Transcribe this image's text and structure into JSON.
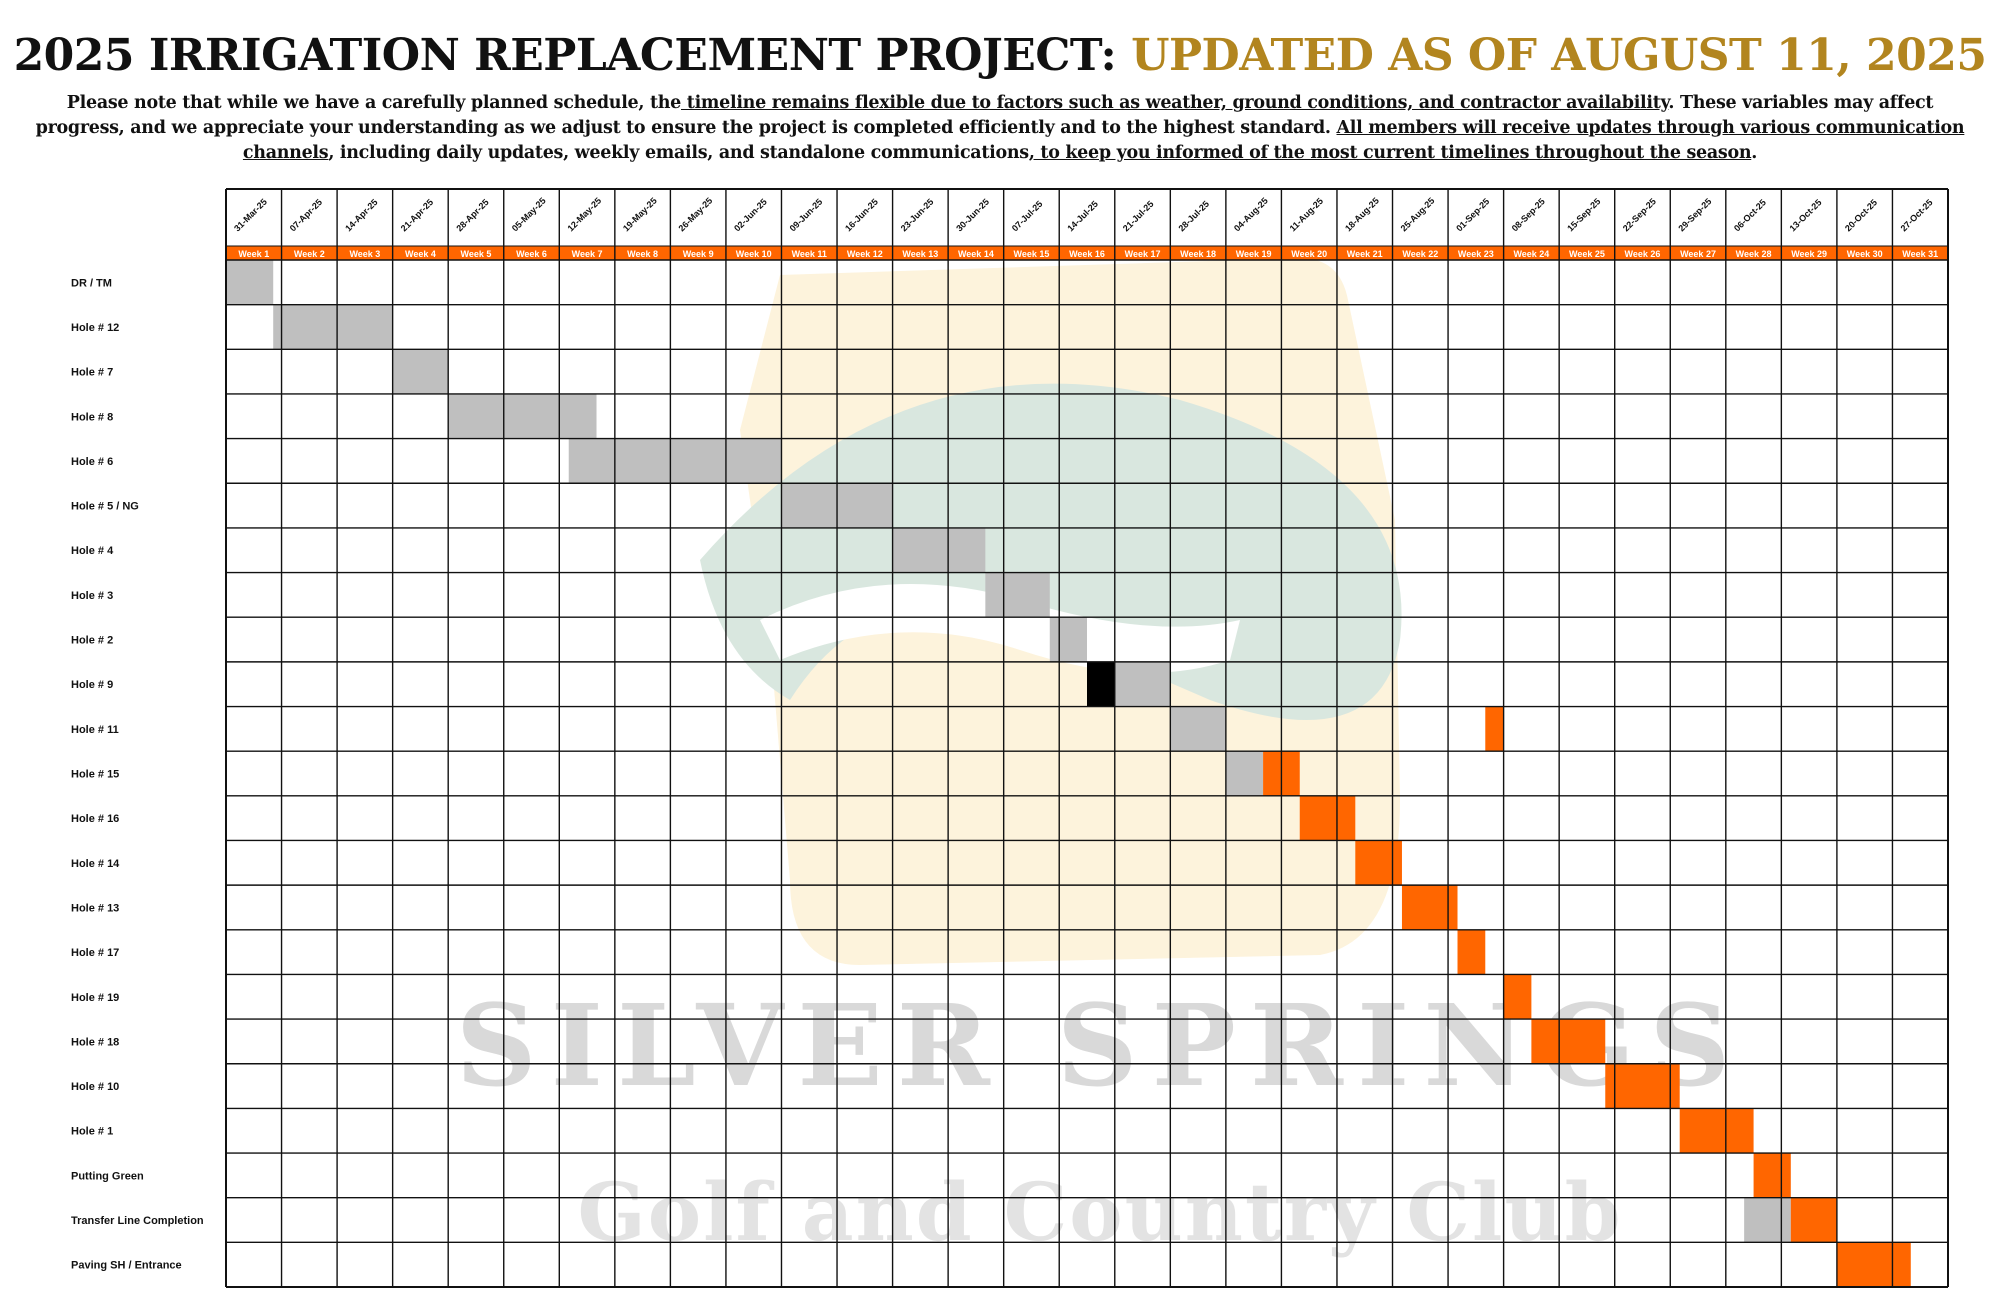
{
  "header": {
    "title_main": "2025 IRRIGATION REPLACEMENT PROJECT:",
    "title_update": "UPDATED AS OF AUGUST 11, 2025",
    "notice": [
      {
        "text": "Please note that while we have a carefully planned schedule, the",
        "u": false
      },
      {
        "text": " timeline remains flexible due to factors such as weather, ground conditions, and contractor availability",
        "u": true
      },
      {
        "text": ". These variables may affect progress, and we appreciate your understanding as we adjust to ensure the project is completed efficiently and to the highest standard.  ",
        "u": false
      },
      {
        "text": "All members will receive updates through various communication channels",
        "u": true
      },
      {
        "text": ", including daily updates, weekly emails, and standalone communications",
        "u": false
      },
      {
        "text": ", to keep you informed of the most current timelines throughout the season",
        "u": true
      },
      {
        "text": ".",
        "u": false
      }
    ]
  },
  "watermark": {
    "line1": "SILVER SPRINGS",
    "line2": "Golf and Country Club"
  },
  "colors": {
    "completed": "#bfbfbf",
    "planned": "#ff6600",
    "current": "#000000",
    "week_header": "#ff6600",
    "title_accent": "#b2851f"
  },
  "chart_data": {
    "type": "gantt",
    "dates": [
      "31-Mar-25",
      "07-Apr-25",
      "14-Apr-25",
      "21-Apr-25",
      "28-Apr-25",
      "05-May-25",
      "12-May-25",
      "19-May-25",
      "26-May-25",
      "02-Jun-25",
      "09-Jun-25",
      "16-Jun-25",
      "23-Jun-25",
      "30-Jun-25",
      "07-Jul-25",
      "14-Jul-25",
      "21-Jul-25",
      "28-Jul-25",
      "04-Aug-25",
      "11-Aug-25",
      "18-Aug-25",
      "25-Aug-25",
      "01-Sep-25",
      "08-Sep-25",
      "15-Sep-25",
      "22-Sep-25",
      "29-Sep-25",
      "06-Oct-25",
      "13-Oct-25",
      "20-Oct-25",
      "27-Oct-25"
    ],
    "weeks": [
      "Week 1",
      "Week 2",
      "Week 3",
      "Week 4",
      "Week 5",
      "Week 6",
      "Week 7",
      "Week 8",
      "Week 9",
      "Week 10",
      "Week 11",
      "Week 12",
      "Week 13",
      "Week 14",
      "Week 15",
      "Week 16",
      "Week 17",
      "Week 18",
      "Week 19",
      "Week 20",
      "Week 21",
      "Week 22",
      "Week 23",
      "Week 24",
      "Week 25",
      "Week 26",
      "Week 27",
      "Week 28",
      "Week 29",
      "Week 30",
      "Week 31"
    ],
    "tasks": [
      {
        "name": "DR / TM",
        "bars": [
          {
            "start": 1,
            "end": 1.85,
            "status": "completed"
          }
        ]
      },
      {
        "name": "Hole # 12",
        "bars": [
          {
            "start": 1.85,
            "end": 4,
            "status": "completed"
          }
        ]
      },
      {
        "name": "Hole # 7",
        "bars": [
          {
            "start": 4,
            "end": 5,
            "status": "completed"
          }
        ]
      },
      {
        "name": "Hole # 8",
        "bars": [
          {
            "start": 5,
            "end": 7.67,
            "status": "completed"
          }
        ]
      },
      {
        "name": "Hole # 6",
        "bars": [
          {
            "start": 7.17,
            "end": 11,
            "status": "completed"
          }
        ]
      },
      {
        "name": "Hole # 5 / NG",
        "bars": [
          {
            "start": 11,
            "end": 13,
            "status": "completed"
          }
        ]
      },
      {
        "name": "Hole # 4",
        "bars": [
          {
            "start": 13,
            "end": 14.67,
            "status": "completed"
          }
        ]
      },
      {
        "name": "Hole # 3",
        "bars": [
          {
            "start": 14.67,
            "end": 15.83,
            "status": "completed"
          }
        ]
      },
      {
        "name": "Hole # 2",
        "bars": [
          {
            "start": 15.83,
            "end": 16.5,
            "status": "completed"
          }
        ]
      },
      {
        "name": "Hole # 9",
        "bars": [
          {
            "start": 16.5,
            "end": 17,
            "status": "current"
          },
          {
            "start": 17,
            "end": 18,
            "status": "completed"
          }
        ]
      },
      {
        "name": "Hole # 11",
        "bars": [
          {
            "start": 18,
            "end": 19,
            "status": "completed"
          },
          {
            "start": 23.67,
            "end": 24,
            "status": "planned"
          }
        ]
      },
      {
        "name": "Hole # 15",
        "bars": [
          {
            "start": 19,
            "end": 19.67,
            "status": "completed"
          },
          {
            "start": 19.67,
            "end": 20.33,
            "status": "planned"
          }
        ]
      },
      {
        "name": "Hole # 16",
        "bars": [
          {
            "start": 20.33,
            "end": 21.33,
            "status": "planned"
          }
        ]
      },
      {
        "name": "Hole # 14",
        "bars": [
          {
            "start": 21.33,
            "end": 22.17,
            "status": "planned"
          }
        ]
      },
      {
        "name": "Hole # 13",
        "bars": [
          {
            "start": 22.17,
            "end": 23.17,
            "status": "planned"
          }
        ]
      },
      {
        "name": "Hole # 17",
        "bars": [
          {
            "start": 23.17,
            "end": 23.67,
            "status": "planned"
          }
        ]
      },
      {
        "name": "Hole # 19",
        "bars": [
          {
            "start": 24,
            "end": 24.5,
            "status": "planned"
          }
        ]
      },
      {
        "name": "Hole # 18",
        "bars": [
          {
            "start": 24.5,
            "end": 25.83,
            "status": "planned"
          }
        ]
      },
      {
        "name": "Hole # 10",
        "bars": [
          {
            "start": 25.83,
            "end": 27.17,
            "status": "planned"
          }
        ]
      },
      {
        "name": "Hole # 1",
        "bars": [
          {
            "start": 27.17,
            "end": 28.5,
            "status": "planned"
          }
        ]
      },
      {
        "name": "Putting Green",
        "bars": [
          {
            "start": 28.5,
            "end": 29.17,
            "status": "planned"
          }
        ]
      },
      {
        "name": "Transfer Line Completion",
        "bars": [
          {
            "start": 28.33,
            "end": 29.17,
            "status": "completed"
          },
          {
            "start": 29.17,
            "end": 30,
            "status": "planned"
          }
        ]
      },
      {
        "name": "Paving SH / Entrance",
        "bars": [
          {
            "start": 30,
            "end": 31.33,
            "status": "planned"
          }
        ]
      }
    ]
  }
}
